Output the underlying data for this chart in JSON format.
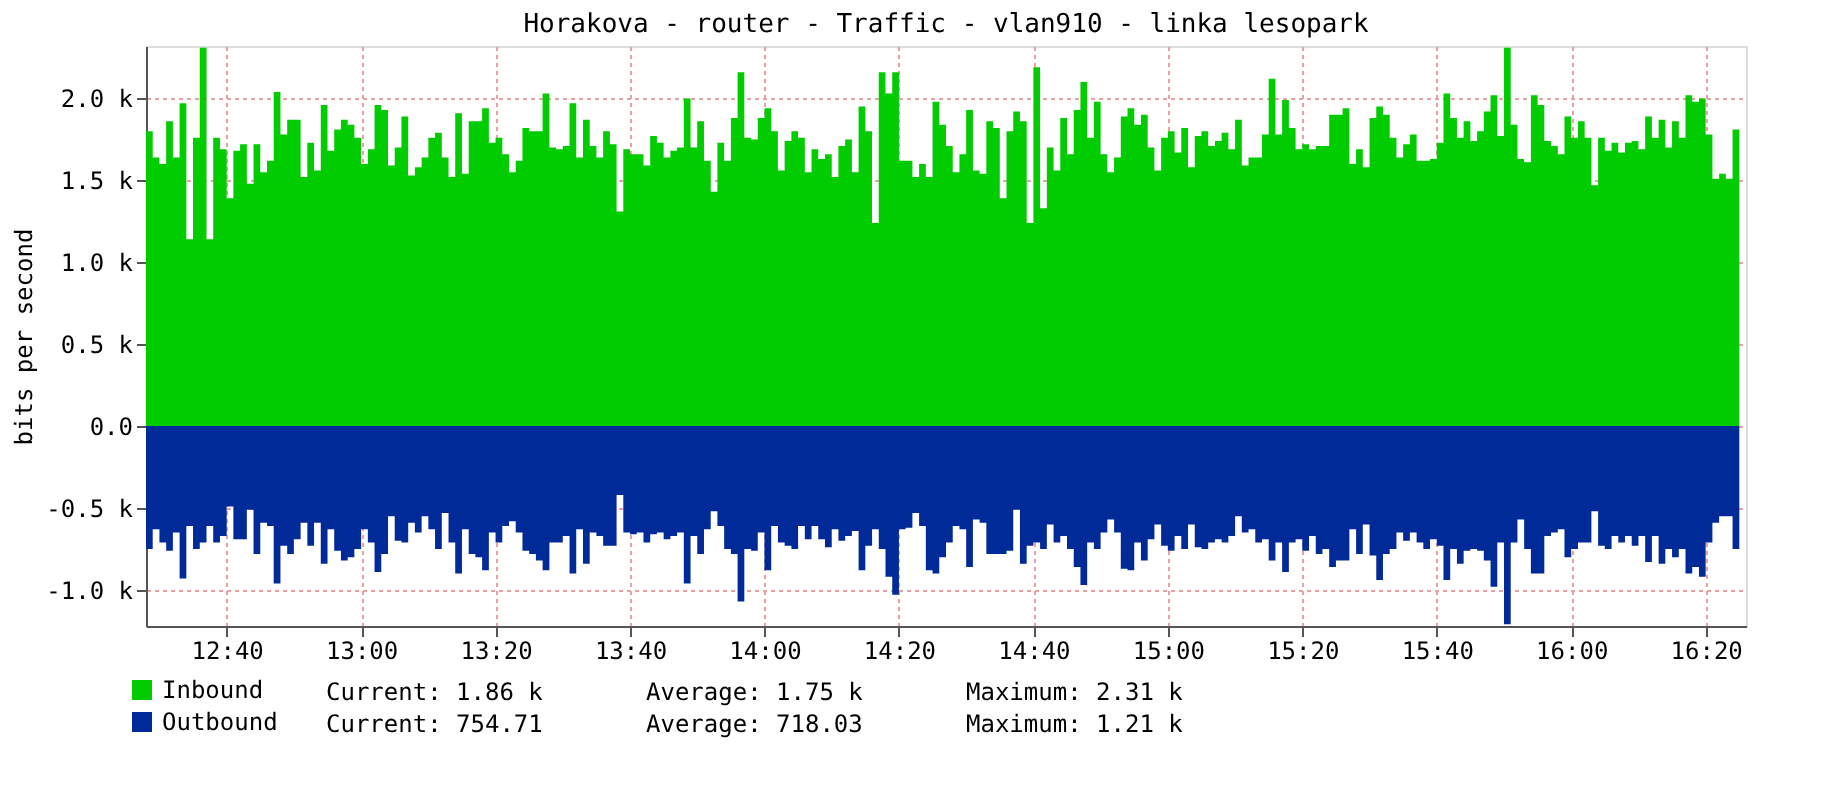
{
  "chart_data": {
    "type": "area",
    "title": "Horakova - router - Traffic - vlan910 - linka lesopark",
    "ylabel": "bits per second",
    "x": [
      12.4667,
      12.4833,
      12.5,
      12.5167,
      12.5333,
      12.55,
      12.5667,
      12.5833,
      12.6,
      12.6167,
      12.6333,
      12.65,
      12.6667,
      12.6833,
      12.7,
      12.7167,
      12.7333,
      12.75,
      12.7667,
      12.7833,
      12.8,
      12.8167,
      12.8333,
      12.85,
      12.8667,
      12.8833,
      12.9,
      12.9167,
      12.9333,
      12.95,
      12.9667,
      12.9833,
      13,
      13.0167,
      13.0333,
      13.05,
      13.0667,
      13.0833,
      13.1,
      13.1167,
      13.1333,
      13.15,
      13.1667,
      13.1833,
      13.2,
      13.2167,
      13.2333,
      13.25,
      13.2667,
      13.2833,
      13.3,
      13.3167,
      13.3333,
      13.35,
      13.3667,
      13.3833,
      13.4,
      13.4167,
      13.4333,
      13.45,
      13.4667,
      13.4833,
      13.5,
      13.5167,
      13.5333,
      13.55,
      13.5667,
      13.5833,
      13.6,
      13.6167,
      13.6333,
      13.65,
      13.6667,
      13.6833,
      13.7,
      13.7167,
      13.7333,
      13.75,
      13.7667,
      13.7833,
      13.8,
      13.8167,
      13.8333,
      13.85,
      13.8667,
      13.8833,
      13.9,
      13.9167,
      13.9333,
      13.95,
      13.9667,
      13.9833,
      14,
      14.0167,
      14.0333,
      14.05,
      14.0667,
      14.0833,
      14.1,
      14.1167,
      14.1333,
      14.15,
      14.1667,
      14.1833,
      14.2,
      14.2167,
      14.2333,
      14.25,
      14.2667,
      14.2833,
      14.3,
      14.3167,
      14.3333,
      14.35,
      14.3667,
      14.3833,
      14.4,
      14.4167,
      14.4333,
      14.45,
      14.4667,
      14.4833,
      14.5,
      14.5167,
      14.5333,
      14.55,
      14.5667,
      14.5833,
      14.6,
      14.6167,
      14.6333,
      14.65,
      14.6667,
      14.6833,
      14.7,
      14.7167,
      14.7333,
      14.75,
      14.7667,
      14.7833,
      14.8,
      14.8167,
      14.8333,
      14.85,
      14.8667,
      14.8833,
      14.9,
      14.9167,
      14.9333,
      14.95,
      14.9667,
      14.9833,
      15,
      15.0167,
      15.0333,
      15.05,
      15.0667,
      15.0833,
      15.1,
      15.1167,
      15.1333,
      15.15,
      15.1667,
      15.1833,
      15.2,
      15.2167,
      15.2333,
      15.25,
      15.2667,
      15.2833,
      15.3,
      15.3167,
      15.3333,
      15.35,
      15.3667,
      15.3833,
      15.4,
      15.4167,
      15.4333,
      15.45,
      15.4667,
      15.4833,
      15.5,
      15.5167,
      15.5333,
      15.55,
      15.5667,
      15.5833,
      15.6,
      15.6167,
      15.6333,
      15.65,
      15.6667,
      15.6833,
      15.7,
      15.7167,
      15.7333,
      15.75,
      15.7667,
      15.7833,
      15.8,
      15.8167,
      15.8333,
      15.85,
      15.8667,
      15.8833,
      15.9,
      15.9167,
      15.9333,
      15.95,
      15.9667,
      15.9833,
      16,
      16.0167,
      16.0333,
      16.05,
      16.0667,
      16.0833,
      16.1,
      16.1167,
      16.1333,
      16.15,
      16.1667,
      16.1833,
      16.2,
      16.2167,
      16.2333,
      16.25,
      16.2667,
      16.2833,
      16.3,
      16.3167,
      16.3333,
      16.35,
      16.3667,
      16.3833,
      16.4,
      16.4167
    ],
    "series": [
      {
        "name": "Inbound",
        "color": "#00cc00",
        "values": [
          1800,
          1640,
          1600,
          1860,
          1640,
          1970,
          1140,
          1760,
          2310,
          1140,
          1760,
          1690,
          1390,
          1680,
          1720,
          1480,
          1720,
          1550,
          1620,
          2040,
          1780,
          1870,
          1870,
          1520,
          1730,
          1560,
          1960,
          1680,
          1810,
          1870,
          1840,
          1760,
          1600,
          1690,
          1960,
          1930,
          1590,
          1700,
          1890,
          1530,
          1580,
          1640,
          1760,
          1790,
          1640,
          1520,
          1910,
          1540,
          1860,
          1860,
          1940,
          1730,
          1760,
          1660,
          1550,
          1620,
          1820,
          1800,
          1800,
          2030,
          1700,
          1690,
          1710,
          1970,
          1640,
          1870,
          1710,
          1640,
          1800,
          1720,
          1310,
          1690,
          1660,
          1660,
          1590,
          1770,
          1730,
          1640,
          1680,
          1700,
          2000,
          1700,
          1860,
          1620,
          1430,
          1730,
          1620,
          1880,
          2160,
          1760,
          1750,
          1880,
          1940,
          1800,
          1560,
          1740,
          1800,
          1760,
          1550,
          1690,
          1630,
          1660,
          1520,
          1710,
          1750,
          1550,
          1950,
          1800,
          1240,
          2160,
          2030,
          2160,
          1620,
          1620,
          1520,
          1600,
          1520,
          1980,
          1840,
          1710,
          1550,
          1660,
          1930,
          1560,
          1540,
          1860,
          1820,
          1390,
          1800,
          1920,
          1860,
          1240,
          2190,
          1330,
          1700,
          1560,
          1880,
          1660,
          1930,
          2100,
          1760,
          1980,
          1660,
          1550,
          1640,
          1890,
          1940,
          1840,
          1900,
          1700,
          1560,
          1760,
          1800,
          1670,
          1820,
          1580,
          1770,
          1800,
          1710,
          1740,
          1790,
          1690,
          1870,
          1590,
          1640,
          1640,
          1780,
          2120,
          1780,
          1990,
          1820,
          1690,
          1720,
          1690,
          1710,
          1710,
          1900,
          1900,
          1940,
          1600,
          1690,
          1580,
          1880,
          1950,
          1900,
          1760,
          1640,
          1720,
          1780,
          1620,
          1620,
          1630,
          1730,
          2030,
          1880,
          1760,
          1860,
          1740,
          1800,
          1920,
          2020,
          1770,
          2310,
          1840,
          1630,
          1610,
          2020,
          1960,
          1740,
          1710,
          1660,
          1890,
          1760,
          1860,
          1760,
          1470,
          1760,
          1680,
          1730,
          1670,
          1730,
          1740,
          1690,
          1890,
          1760,
          1870,
          1700,
          1860,
          1760,
          2020,
          1980,
          2000,
          1780,
          1510,
          1540,
          1510,
          1810,
          1820
        ]
      },
      {
        "name": "Outbound",
        "color": "#002a97",
        "values": [
          -750,
          -630,
          -710,
          -760,
          -650,
          -930,
          -610,
          -750,
          -710,
          -610,
          -710,
          -670,
          -490,
          -690,
          -690,
          -510,
          -780,
          -590,
          -610,
          -960,
          -730,
          -780,
          -690,
          -590,
          -730,
          -590,
          -840,
          -630,
          -760,
          -820,
          -800,
          -750,
          -630,
          -710,
          -890,
          -780,
          -550,
          -700,
          -710,
          -590,
          -650,
          -550,
          -630,
          -750,
          -530,
          -710,
          -900,
          -630,
          -780,
          -800,
          -880,
          -650,
          -710,
          -610,
          -580,
          -650,
          -760,
          -780,
          -820,
          -880,
          -710,
          -710,
          -670,
          -900,
          -630,
          -840,
          -650,
          -670,
          -730,
          -730,
          -420,
          -650,
          -660,
          -650,
          -710,
          -660,
          -650,
          -690,
          -670,
          -650,
          -960,
          -670,
          -780,
          -630,
          -520,
          -610,
          -750,
          -780,
          -1070,
          -750,
          -760,
          -650,
          -880,
          -610,
          -710,
          -730,
          -750,
          -610,
          -690,
          -610,
          -690,
          -740,
          -630,
          -700,
          -670,
          -640,
          -880,
          -730,
          -630,
          -750,
          -920,
          -1030,
          -630,
          -620,
          -530,
          -610,
          -880,
          -900,
          -800,
          -710,
          -610,
          -630,
          -860,
          -570,
          -590,
          -780,
          -780,
          -780,
          -760,
          -510,
          -840,
          -730,
          -710,
          -750,
          -600,
          -710,
          -670,
          -750,
          -860,
          -970,
          -710,
          -750,
          -650,
          -570,
          -650,
          -870,
          -880,
          -710,
          -820,
          -690,
          -600,
          -730,
          -760,
          -670,
          -750,
          -600,
          -740,
          -750,
          -710,
          -690,
          -710,
          -670,
          -550,
          -650,
          -630,
          -710,
          -690,
          -820,
          -710,
          -890,
          -710,
          -690,
          -760,
          -670,
          -780,
          -750,
          -860,
          -820,
          -820,
          -630,
          -780,
          -600,
          -790,
          -940,
          -780,
          -750,
          -650,
          -700,
          -650,
          -710,
          -750,
          -690,
          -730,
          -940,
          -750,
          -840,
          -760,
          -750,
          -760,
          -820,
          -980,
          -710,
          -1210,
          -710,
          -570,
          -750,
          -900,
          -900,
          -670,
          -650,
          -630,
          -800,
          -750,
          -710,
          -710,
          -520,
          -730,
          -750,
          -670,
          -710,
          -670,
          -730,
          -670,
          -830,
          -670,
          -840,
          -750,
          -800,
          -750,
          -900,
          -860,
          -920,
          -710,
          -590,
          -550,
          -550,
          -750,
          -710
        ]
      }
    ],
    "xlim": [
      12.4667,
      16.4333
    ],
    "xticks": [
      {
        "value": 12.6667,
        "label": "12:40"
      },
      {
        "value": 13,
        "label": "13:00"
      },
      {
        "value": 13.3333,
        "label": "13:20"
      },
      {
        "value": 13.6667,
        "label": "13:40"
      },
      {
        "value": 14,
        "label": "14:00"
      },
      {
        "value": 14.3333,
        "label": "14:20"
      },
      {
        "value": 14.6667,
        "label": "14:40"
      },
      {
        "value": 15,
        "label": "15:00"
      },
      {
        "value": 15.3333,
        "label": "15:20"
      },
      {
        "value": 15.6667,
        "label": "15:40"
      },
      {
        "value": 16,
        "label": "16:00"
      },
      {
        "value": 16.3333,
        "label": "16:20"
      }
    ],
    "ylim": [
      -1220,
      2320
    ],
    "yticks": [
      {
        "value": -1000,
        "label": "-1.0 k"
      },
      {
        "value": -500,
        "label": "-0.5 k"
      },
      {
        "value": 0,
        "label": "0.0"
      },
      {
        "value": 500,
        "label": "0.5 k"
      },
      {
        "value": 1000,
        "label": "1.0 k"
      },
      {
        "value": 1500,
        "label": "1.5 k"
      },
      {
        "value": 2000,
        "label": "2.0 k"
      }
    ],
    "grid": true,
    "legend": "bottom",
    "annotations": [
      "Current: 1.86 k",
      "Average: 1.75 k",
      "Maximum: 2.31 k",
      "Current: 754.71",
      "Average: 718.03",
      "Maximum: 1.21 k"
    ]
  }
}
